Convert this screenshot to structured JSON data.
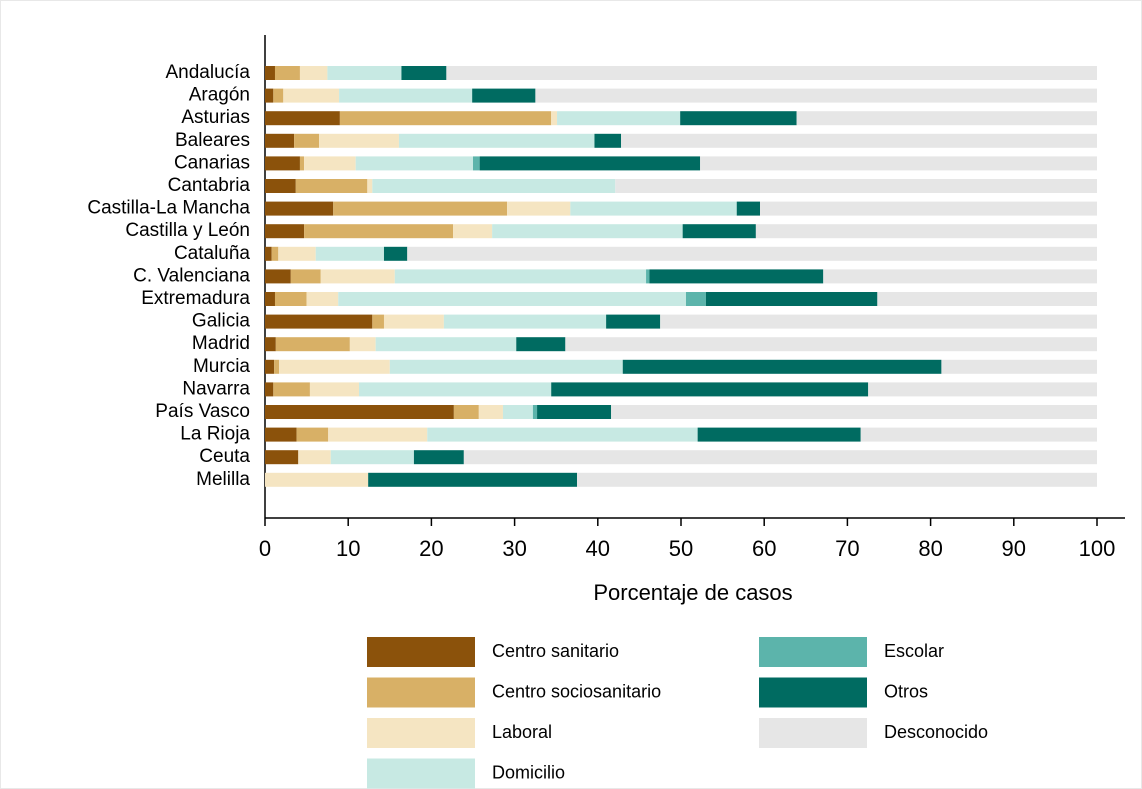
{
  "chart_data": {
    "type": "bar",
    "orientation": "horizontal",
    "stacked": true,
    "xlabel": "Porcentaje de casos",
    "categories": [
      "Andalucía",
      "Aragón",
      "Asturias",
      "Baleares",
      "Canarias",
      "Cantabria",
      "Castilla-La Mancha",
      "Castilla y León",
      "Cataluña",
      "C. Valenciana",
      "Extremadura",
      "Galicia",
      "Madrid",
      "Murcia",
      "Navarra",
      "País Vasco",
      "La Rioja",
      "Ceuta",
      "Melilla"
    ],
    "series": [
      {
        "name": "Centro sanitario",
        "color": "#8b520b",
        "values": [
          1.2,
          1.0,
          9.0,
          3.5,
          4.2,
          3.7,
          8.2,
          4.7,
          0.8,
          3.1,
          1.2,
          12.9,
          1.3,
          1.1,
          1.0,
          22.7,
          3.8,
          4.0,
          0
        ]
      },
      {
        "name": "Centro sociosanitario",
        "color": "#d8b066",
        "values": [
          3.0,
          1.2,
          25.4,
          3.0,
          0.5,
          8.6,
          20.9,
          17.9,
          0.8,
          3.6,
          3.8,
          1.4,
          8.9,
          0.6,
          4.4,
          3.0,
          3.8,
          0,
          0
        ]
      },
      {
        "name": "Laboral",
        "color": "#f5e5c2",
        "values": [
          3.3,
          6.7,
          0.7,
          9.6,
          6.2,
          0.6,
          7.6,
          4.7,
          4.5,
          8.9,
          3.8,
          7.2,
          3.1,
          13.3,
          5.9,
          2.9,
          11.9,
          3.9,
          12.4
        ]
      },
      {
        "name": "Domicilio",
        "color": "#c7e9e3",
        "values": [
          8.9,
          16.0,
          14.8,
          23.5,
          14.1,
          29.2,
          20.0,
          22.9,
          8.2,
          30.2,
          41.8,
          19.5,
          16.9,
          28.0,
          23.1,
          3.6,
          32.5,
          10.0,
          0
        ]
      },
      {
        "name": "Escolar",
        "color": "#5cb4ab",
        "values": [
          0,
          0,
          0,
          0,
          0.8,
          0,
          0,
          0,
          0,
          0.4,
          2.4,
          0,
          0,
          0,
          0,
          0.5,
          0,
          0,
          0
        ]
      },
      {
        "name": "Otros",
        "color": "#006b61",
        "values": [
          5.4,
          7.6,
          14.0,
          3.2,
          26.5,
          0,
          2.8,
          8.8,
          2.8,
          20.9,
          20.6,
          6.5,
          5.9,
          38.3,
          38.1,
          8.9,
          19.6,
          6.0,
          25.1
        ]
      },
      {
        "name": "Desconocido",
        "color": "#e6e6e6",
        "values": [
          78.2,
          67.5,
          36.1,
          57.2,
          47.7,
          57.9,
          40.5,
          41.0,
          82.9,
          32.9,
          26.4,
          52.5,
          63.9,
          18.7,
          27.5,
          58.4,
          28.4,
          76.1,
          62.5
        ]
      }
    ],
    "xlim": [
      0,
      100
    ],
    "xticks": [
      0,
      10,
      20,
      30,
      40,
      50,
      60,
      70,
      80,
      90,
      100
    ]
  }
}
